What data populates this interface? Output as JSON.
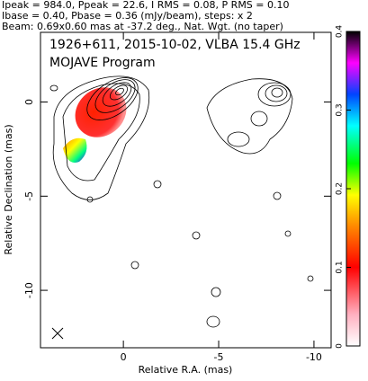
{
  "chart_data": {
    "type": "contour",
    "header": [
      "Ipeak = 984.0, Ppeak = 22.6, I RMS = 0.08, P RMS = 0.10",
      "Ibase = 0.40, Pbase = 0.36 (mJy/beam), steps: x 2",
      "Beam: 0.69x0.60 mas at -37.2 deg., Nat. Wgt. (no taper)"
    ],
    "title": "1926+611, 2015-10-02, VLBA 15.4 GHz",
    "subtitle": "MOJAVE Program",
    "x_label": "Relative R.A. (mas)",
    "y_label": "Relative Declination (mas)",
    "xlim": [
      4.35,
      -10.9
    ],
    "ylim": [
      -13.05,
      3.7
    ],
    "xticks": [
      0,
      -5,
      -10
    ],
    "yticks": [
      -10,
      -5,
      0
    ],
    "colorbar": {
      "lim": [
        0,
        0.4
      ],
      "ticks": [
        0,
        0.1,
        0.2,
        0.3,
        0.4
      ]
    }
  }
}
